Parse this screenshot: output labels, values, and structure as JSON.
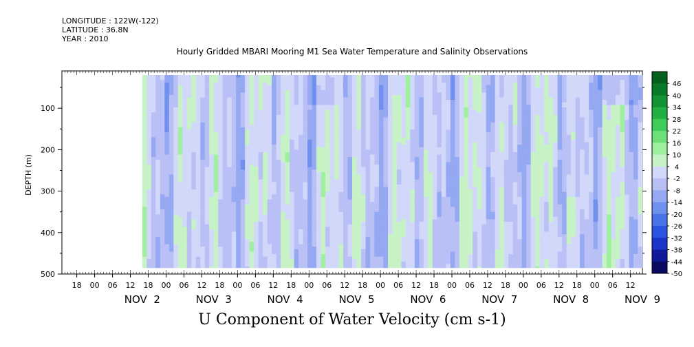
{
  "header": {
    "longitude": "LONGITUDE : 122W(-122)",
    "latitude": "LATITUDE : 36.8N",
    "year": "YEAR : 2010"
  },
  "chart_data": {
    "type": "heatmap",
    "title": "Hourly Gridded MBARI Mooring M1 Sea Water Temperature and Salinity Observations",
    "xlabel": "U Component of Water Velocity (cm s-1)",
    "ylabel": "DEPTH (m)",
    "ylim": [
      500,
      10
    ],
    "y_reversed": true,
    "yticks": [
      100,
      200,
      300,
      400,
      500
    ],
    "x_start_hour": "NOV 1 13:00",
    "x_end_hour": "NOV 9 16:00",
    "data_start_hour": "NOV 2 16:00",
    "data_depth_range": [
      20,
      485
    ],
    "hour_tick_labels": [
      "18",
      "00",
      "06",
      "12",
      "18",
      "00",
      "06",
      "12",
      "18",
      "00",
      "06",
      "12",
      "18",
      "00",
      "06",
      "12",
      "18",
      "00",
      "06",
      "12",
      "18",
      "00",
      "06",
      "12",
      "18",
      "00",
      "06",
      "12",
      "18",
      "00",
      "06",
      "12"
    ],
    "day_labels": [
      "NOV 2",
      "NOV 3",
      "NOV 4",
      "NOV 5",
      "NOV 6",
      "NOV 7",
      "NOV 8",
      "NOV 9"
    ],
    "colorbar": {
      "levels": [
        -50,
        -44,
        -38,
        -32,
        -26,
        -20,
        -14,
        -8,
        -2,
        4,
        10,
        16,
        22,
        28,
        34,
        40,
        46
      ],
      "labels": [
        "46",
        "40",
        "34",
        "28",
        "22",
        "16",
        "10",
        "4",
        "-2",
        "-8",
        "-14",
        "-20",
        "-26",
        "-32",
        "-38",
        "-44",
        "-50"
      ],
      "colors": [
        "#0a0a60",
        "#0f1a9a",
        "#1a35c8",
        "#2a55e0",
        "#4a75ea",
        "#7090ee",
        "#95a8f2",
        "#b8c0f6",
        "#d2d8fa",
        "#c6f2c6",
        "#9ef09e",
        "#6ee07a",
        "#40cc58",
        "#22b044",
        "#129434",
        "#097a28",
        "#05601e"
      ]
    },
    "summary": "Alternating vertical bands of weak westward (blue, about -10 to -20) and eastward (green, about +5 to +20) flow through the full depth; stronger westward cores near the surface around NOV 5 and late NOV 8."
  }
}
